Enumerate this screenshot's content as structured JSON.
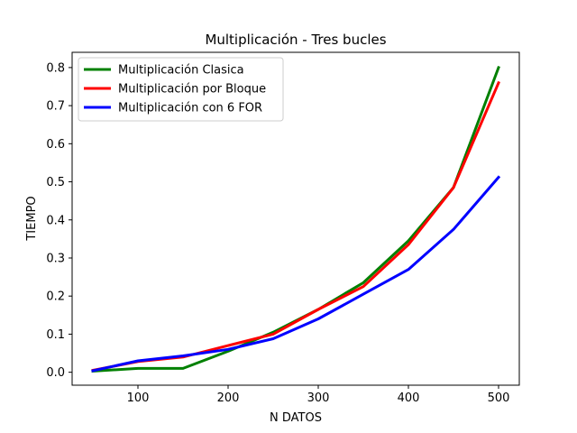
{
  "chart_data": {
    "type": "line",
    "title": "Multiplicación - Tres bucles",
    "xlabel": "N DATOS",
    "ylabel": "TIEMPO",
    "xlim": [
      27,
      523
    ],
    "ylim": [
      -0.034,
      0.84
    ],
    "xticks": [
      "100",
      "200",
      "300",
      "400",
      "500"
    ],
    "yticks": [
      "0.0",
      "0.1",
      "0.2",
      "0.3",
      "0.4",
      "0.5",
      "0.6",
      "0.7",
      "0.8"
    ],
    "grid": false,
    "legend_position": "top-left",
    "x": [
      50,
      100,
      150,
      200,
      250,
      300,
      350,
      400,
      450,
      500
    ],
    "series": [
      {
        "name": "Multiplicación Clasica",
        "color": "#008000",
        "values": [
          0.003,
          0.01,
          0.01,
          0.055,
          0.105,
          0.165,
          0.235,
          0.345,
          0.485,
          0.8
        ]
      },
      {
        "name": "Multiplicación por Bloque",
        "color": "#ff0000",
        "values": [
          0.005,
          0.028,
          0.04,
          0.07,
          0.1,
          0.165,
          0.225,
          0.335,
          0.485,
          0.76
        ]
      },
      {
        "name": "Multiplicación con 6 FOR",
        "color": "#0000ff",
        "values": [
          0.004,
          0.03,
          0.043,
          0.06,
          0.088,
          0.14,
          0.205,
          0.27,
          0.375,
          0.512
        ]
      }
    ]
  }
}
